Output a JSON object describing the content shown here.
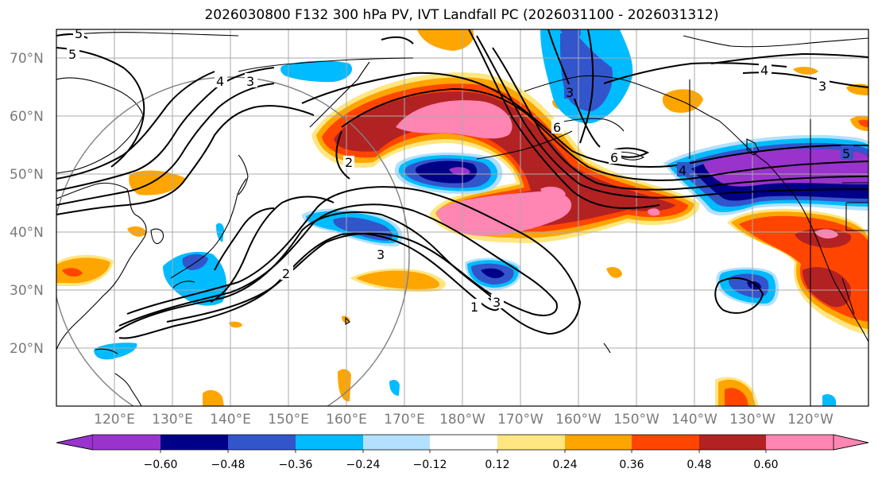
{
  "title": "2026030800 F132 300 hPa PV, IVT Landfall PC (2026031100 - 2026031312)",
  "map": {
    "lon_range": [
      110,
      250
    ],
    "lat_range": [
      10,
      75
    ],
    "lat_ticks": [
      {
        "value": 20,
        "label": "20°N"
      },
      {
        "value": 30,
        "label": "30°N"
      },
      {
        "value": 40,
        "label": "40°N"
      },
      {
        "value": 50,
        "label": "50°N"
      },
      {
        "value": 60,
        "label": "60°N"
      },
      {
        "value": 70,
        "label": "70°N"
      }
    ],
    "lon_ticks": [
      {
        "value": 120,
        "label": "120°E"
      },
      {
        "value": 130,
        "label": "130°E"
      },
      {
        "value": 140,
        "label": "140°E"
      },
      {
        "value": 150,
        "label": "150°E"
      },
      {
        "value": 160,
        "label": "160°E"
      },
      {
        "value": 170,
        "label": "170°E"
      },
      {
        "value": 180,
        "label": "180°W"
      },
      {
        "value": 190,
        "label": "170°W"
      },
      {
        "value": 200,
        "label": "160°W"
      },
      {
        "value": 210,
        "label": "150°W"
      },
      {
        "value": 220,
        "label": "140°W"
      },
      {
        "value": 230,
        "label": "130°W"
      },
      {
        "value": 240,
        "label": "120°W"
      }
    ],
    "contour_labels": [
      "5",
      "4",
      "3",
      "3",
      "2",
      "1",
      "3",
      "6",
      "6",
      "5",
      "4",
      "3",
      "3",
      "4",
      "5",
      "2"
    ]
  },
  "colorbar": {
    "colors": [
      "#9933cc",
      "#000088",
      "#3355cc",
      "#00bbff",
      "#b3e0ff",
      "#ffffff",
      "#ffe680",
      "#ffa500",
      "#ff4500",
      "#b22222",
      "#ff85b3"
    ],
    "labels": [
      "−0.60",
      "−0.48",
      "−0.36",
      "−0.24",
      "−0.12",
      "0.12",
      "0.24",
      "0.36",
      "0.48",
      "0.60"
    ]
  },
  "colors": {
    "land_outline": "#000000",
    "grid": "#aaaaaa",
    "circle": "#808080",
    "contour": "#000000"
  }
}
